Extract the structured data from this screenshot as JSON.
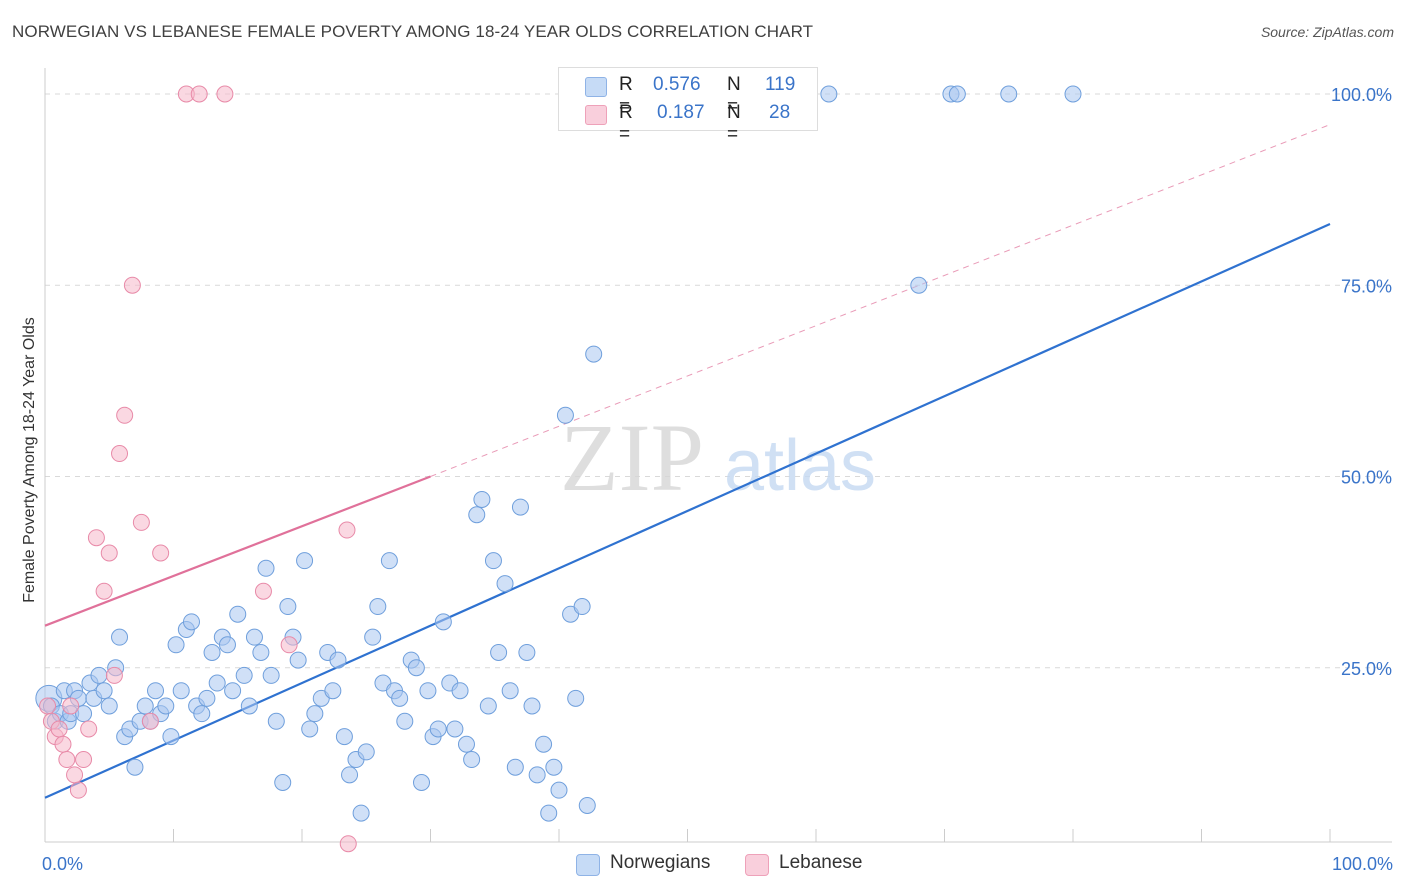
{
  "header": {
    "title": "NORWEGIAN VS LEBANESE FEMALE POVERTY AMONG 18-24 YEAR OLDS CORRELATION CHART",
    "source": "Source: ZipAtlas.com"
  },
  "watermark": {
    "zip": "ZIP",
    "atlas": "atlas"
  },
  "legend": {
    "rows": [
      {
        "r_label": "R =",
        "r_value": "0.576",
        "n_label": "N =",
        "n_value": "119",
        "color": "#a9c6f0"
      },
      {
        "r_label": "R =",
        "r_value": "0.187",
        "n_label": "N =",
        "n_value": "28",
        "color": "#f6b8cb"
      }
    ]
  },
  "bottom_legend": [
    {
      "label": "Norwegians",
      "color": "#a9c6f0"
    },
    {
      "label": "Lebanese",
      "color": "#f6b8cb"
    }
  ],
  "colors": {
    "blue_fill": "#a9c6f0",
    "blue_stroke": "#6f9fdc",
    "blue_line": "#2f72d0",
    "pink_fill": "#f6b8cb",
    "pink_stroke": "#e88aa8",
    "pink_line": "#e0719a",
    "tick_label": "#3a74c9",
    "grid": "#d9d9d9"
  },
  "chart_data": {
    "type": "scatter",
    "title": "NORWEGIAN VS LEBANESE FEMALE POVERTY AMONG 18-24 YEAR OLDS CORRELATION CHART",
    "ylabel": "Female Poverty Among 18-24 Year Olds",
    "xlabel": "",
    "xlim": [
      0,
      100
    ],
    "ylim": [
      0,
      100
    ],
    "x_tick_labels": [
      {
        "value": 0,
        "label": "0.0%"
      },
      {
        "value": 100,
        "label": "100.0%"
      }
    ],
    "y_tick_labels": [
      {
        "value": 25,
        "label": "25.0%"
      },
      {
        "value": 50,
        "label": "50.0%"
      },
      {
        "value": 75,
        "label": "75.0%"
      },
      {
        "value": 100,
        "label": "100.0%"
      }
    ],
    "grid": true,
    "legend_position": "top-center",
    "series": [
      {
        "name": "Norwegians",
        "r": 0.576,
        "n": 119,
        "trend": {
          "x0": 0,
          "y0": 8,
          "x1": 100,
          "y1": 83
        },
        "points": [
          [
            0.3,
            21
          ],
          [
            0.5,
            20
          ],
          [
            0.8,
            18
          ],
          [
            1.2,
            19
          ],
          [
            1.5,
            22
          ],
          [
            1.8,
            18
          ],
          [
            2.0,
            19
          ],
          [
            2.3,
            22
          ],
          [
            2.6,
            21
          ],
          [
            3.0,
            19
          ],
          [
            3.5,
            23
          ],
          [
            3.8,
            21
          ],
          [
            4.2,
            24
          ],
          [
            4.6,
            22
          ],
          [
            5.0,
            20
          ],
          [
            5.5,
            25
          ],
          [
            5.8,
            29
          ],
          [
            6.2,
            16
          ],
          [
            6.6,
            17
          ],
          [
            7.0,
            12
          ],
          [
            7.4,
            18
          ],
          [
            7.8,
            20
          ],
          [
            8.2,
            18
          ],
          [
            8.6,
            22
          ],
          [
            9.0,
            19
          ],
          [
            9.4,
            20
          ],
          [
            9.8,
            16
          ],
          [
            10.2,
            28
          ],
          [
            10.6,
            22
          ],
          [
            11.0,
            30
          ],
          [
            11.4,
            31
          ],
          [
            11.8,
            20
          ],
          [
            12.2,
            19
          ],
          [
            12.6,
            21
          ],
          [
            13.0,
            27
          ],
          [
            13.4,
            23
          ],
          [
            13.8,
            29
          ],
          [
            14.2,
            28
          ],
          [
            14.6,
            22
          ],
          [
            15.0,
            32
          ],
          [
            15.5,
            24
          ],
          [
            15.9,
            20
          ],
          [
            16.3,
            29
          ],
          [
            16.8,
            27
          ],
          [
            17.2,
            38
          ],
          [
            17.6,
            24
          ],
          [
            18.0,
            18
          ],
          [
            18.5,
            10
          ],
          [
            18.9,
            33
          ],
          [
            19.3,
            29
          ],
          [
            19.7,
            26
          ],
          [
            20.2,
            39
          ],
          [
            20.6,
            17
          ],
          [
            21.0,
            19
          ],
          [
            21.5,
            21
          ],
          [
            22.0,
            27
          ],
          [
            22.4,
            22
          ],
          [
            22.8,
            26
          ],
          [
            23.3,
            16
          ],
          [
            23.7,
            11
          ],
          [
            24.2,
            13
          ],
          [
            24.6,
            6
          ],
          [
            25.0,
            14
          ],
          [
            25.5,
            29
          ],
          [
            25.9,
            33
          ],
          [
            26.3,
            23
          ],
          [
            26.8,
            39
          ],
          [
            27.2,
            22
          ],
          [
            27.6,
            21
          ],
          [
            28.0,
            18
          ],
          [
            28.5,
            26
          ],
          [
            28.9,
            25
          ],
          [
            29.3,
            10
          ],
          [
            29.8,
            22
          ],
          [
            30.2,
            16
          ],
          [
            30.6,
            17
          ],
          [
            31.0,
            31
          ],
          [
            31.5,
            23
          ],
          [
            31.9,
            17
          ],
          [
            32.3,
            22
          ],
          [
            32.8,
            15
          ],
          [
            33.2,
            13
          ],
          [
            33.6,
            45
          ],
          [
            34.0,
            47
          ],
          [
            34.5,
            20
          ],
          [
            34.9,
            39
          ],
          [
            35.3,
            27
          ],
          [
            35.8,
            36
          ],
          [
            36.2,
            22
          ],
          [
            36.6,
            12
          ],
          [
            37.0,
            46
          ],
          [
            37.5,
            27
          ],
          [
            37.9,
            20
          ],
          [
            38.3,
            11
          ],
          [
            38.8,
            15
          ],
          [
            39.2,
            6
          ],
          [
            39.6,
            12
          ],
          [
            40.0,
            9
          ],
          [
            40.5,
            58
          ],
          [
            40.9,
            32
          ],
          [
            41.3,
            21
          ],
          [
            41.8,
            33
          ],
          [
            42.2,
            7
          ],
          [
            42.7,
            66
          ],
          [
            43.1,
            100
          ],
          [
            44.0,
            100
          ],
          [
            46.0,
            100
          ],
          [
            48.0,
            100
          ],
          [
            50.0,
            100
          ],
          [
            51.5,
            100
          ],
          [
            54.0,
            100
          ],
          [
            56.0,
            100
          ],
          [
            57.5,
            100
          ],
          [
            61.0,
            100
          ],
          [
            68.0,
            75
          ],
          [
            70.5,
            100
          ],
          [
            71.0,
            100
          ],
          [
            75.0,
            100
          ],
          [
            80.0,
            100
          ]
        ]
      },
      {
        "name": "Lebanese",
        "r": 0.187,
        "n": 28,
        "trend": {
          "x0": 0,
          "y0": 30.5,
          "x1": 30,
          "y1": 50
        },
        "trend_extended": {
          "x0": 30,
          "y0": 50,
          "x1": 100,
          "y1": 96
        },
        "points": [
          [
            0.2,
            20
          ],
          [
            0.5,
            18
          ],
          [
            0.8,
            16
          ],
          [
            1.1,
            17
          ],
          [
            1.4,
            15
          ],
          [
            1.7,
            13
          ],
          [
            2.0,
            20
          ],
          [
            2.3,
            11
          ],
          [
            2.6,
            9
          ],
          [
            3.0,
            13
          ],
          [
            3.4,
            17
          ],
          [
            4.0,
            42
          ],
          [
            4.6,
            35
          ],
          [
            5.0,
            40
          ],
          [
            5.4,
            24
          ],
          [
            5.8,
            53
          ],
          [
            6.2,
            58
          ],
          [
            6.8,
            75
          ],
          [
            7.5,
            44
          ],
          [
            8.2,
            18
          ],
          [
            9.0,
            40
          ],
          [
            11.0,
            100
          ],
          [
            12.0,
            100
          ],
          [
            14.0,
            100
          ],
          [
            17.0,
            35
          ],
          [
            19.0,
            28
          ],
          [
            23.5,
            43
          ],
          [
            23.6,
            2
          ]
        ]
      }
    ]
  }
}
